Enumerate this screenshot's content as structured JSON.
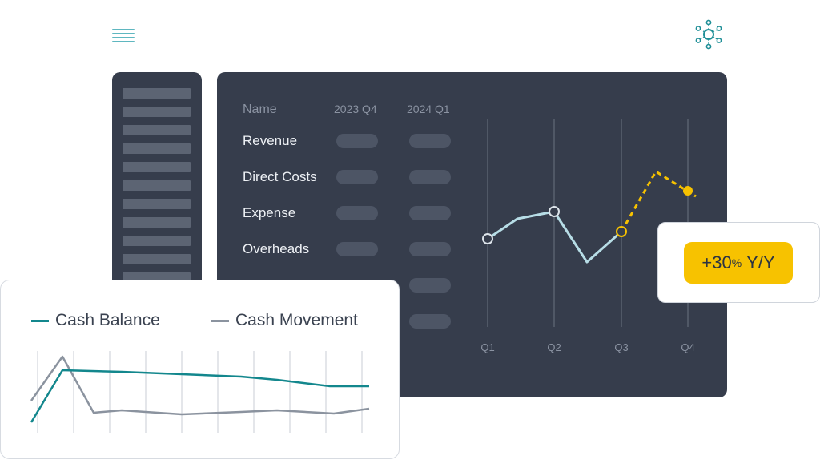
{
  "table": {
    "columns": [
      "Name",
      "2023 Q4",
      "2024 Q1"
    ],
    "rows": [
      "Revenue",
      "Direct Costs",
      "Expense",
      "Overheads"
    ]
  },
  "quarter_chart": {
    "type": "line",
    "categories": [
      "Q1",
      "Q2",
      "Q3",
      "Q4"
    ],
    "colors": {
      "actual": "#b7dde6",
      "forecast": "#f7c200"
    }
  },
  "cash_chart": {
    "type": "line",
    "series": [
      {
        "name": "Cash Balance",
        "color": "#13878d"
      },
      {
        "name": "Cash Movement",
        "color": "#8b939f"
      }
    ]
  },
  "growth": {
    "prefix": "+30",
    "percent": "%",
    "suffix": "Y/Y",
    "color": "#f7c200"
  },
  "icons": {
    "menu": "menu-icon",
    "settings": "network-icon"
  }
}
